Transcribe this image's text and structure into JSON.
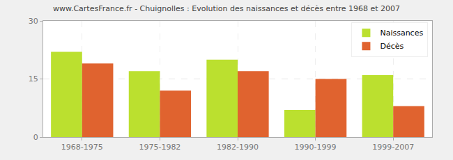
{
  "chart_data": {
    "type": "bar",
    "title": "www.CartesFrance.fr - Chuignolles : Evolution des naissances et décès entre 1968 et 2007",
    "categories": [
      "1968-1975",
      "1975-1982",
      "1982-1990",
      "1990-1999",
      "1999-2007"
    ],
    "series": [
      {
        "name": "Naissances",
        "color": "#bbe02f",
        "values": [
          22,
          17,
          20,
          7,
          16
        ]
      },
      {
        "name": "Décès",
        "color": "#e0632f",
        "values": [
          19,
          12,
          17,
          15,
          8
        ]
      }
    ],
    "ylim": [
      0,
      30
    ],
    "yticks": [
      0,
      15,
      30
    ],
    "grid": true,
    "legend": "upper right"
  }
}
